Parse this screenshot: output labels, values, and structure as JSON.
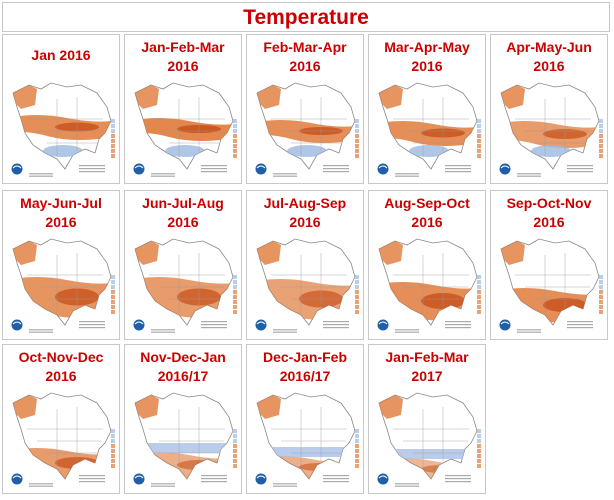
{
  "header": {
    "title": "Temperature"
  },
  "panels": [
    {
      "lines": [
        "Jan 2016"
      ]
    },
    {
      "lines": [
        "Jan-Feb-Mar",
        "2016"
      ]
    },
    {
      "lines": [
        "Feb-Mar-Apr",
        "2016"
      ]
    },
    {
      "lines": [
        "Mar-Apr-May",
        "2016"
      ]
    },
    {
      "lines": [
        "Apr-May-Jun",
        "2016"
      ]
    },
    {
      "lines": [
        "May-Jun-Jul",
        "2016"
      ]
    },
    {
      "lines": [
        "Jun-Jul-Aug",
        "2016"
      ]
    },
    {
      "lines": [
        "Jul-Aug-Sep",
        "2016"
      ]
    },
    {
      "lines": [
        "Aug-Sep-Oct",
        "2016"
      ]
    },
    {
      "lines": [
        "Sep-Oct-Nov",
        "2016"
      ]
    },
    {
      "lines": [
        "Oct-Nov-Dec",
        "2016"
      ]
    },
    {
      "lines": [
        "Nov-Dec-Jan",
        "2016/17"
      ]
    },
    {
      "lines": [
        "Dec-Jan-Feb",
        "2016/17"
      ]
    },
    {
      "lines": [
        "Jan-Feb-Mar",
        "2017"
      ]
    }
  ]
}
